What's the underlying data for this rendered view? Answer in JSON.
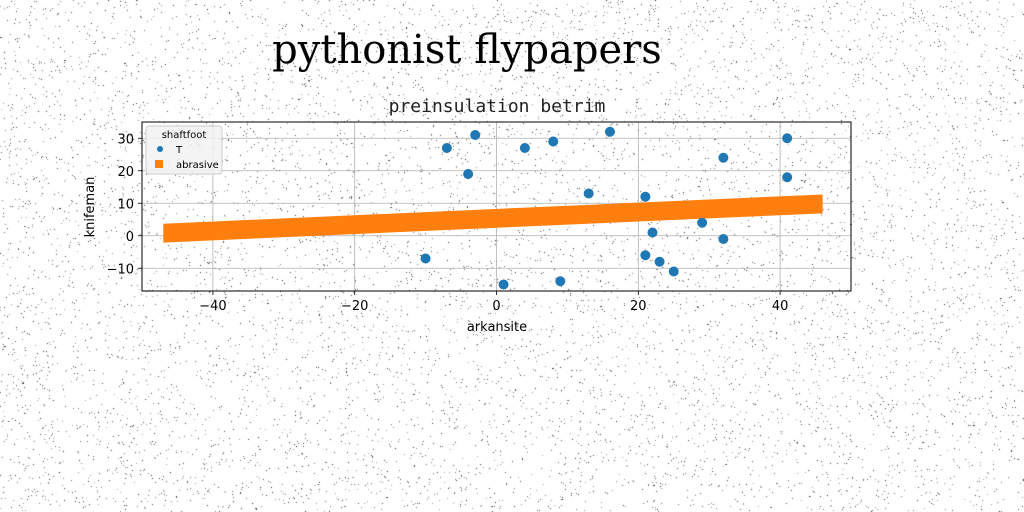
{
  "suptitle": "pythonist flypapers",
  "chart_data": {
    "type": "scatter",
    "title": "preinsulation betrim",
    "xlabel": "arkansite",
    "ylabel": "knifeman",
    "xlim": [
      -50,
      50
    ],
    "ylim": [
      -17,
      35
    ],
    "xticks": [
      -40,
      -20,
      0,
      20,
      40
    ],
    "yticks": [
      -10,
      0,
      10,
      20,
      30
    ],
    "grid": true,
    "legend": {
      "title": "shaftfoot",
      "placement": "top-left"
    },
    "series": [
      {
        "name": "T",
        "type": "scatter",
        "color": "#1f77b4",
        "points": [
          [
            -10,
            -7
          ],
          [
            -7,
            27
          ],
          [
            -4,
            19
          ],
          [
            -3,
            31
          ],
          [
            1,
            -15
          ],
          [
            4,
            27
          ],
          [
            8,
            29
          ],
          [
            9,
            -14
          ],
          [
            13,
            13
          ],
          [
            16,
            32
          ],
          [
            21,
            12
          ],
          [
            21,
            -6
          ],
          [
            22,
            1
          ],
          [
            23,
            -8
          ],
          [
            25,
            -11
          ],
          [
            29,
            4
          ],
          [
            32,
            24
          ],
          [
            32,
            -1
          ],
          [
            41,
            30
          ],
          [
            41,
            18
          ]
        ]
      },
      {
        "name": "abrasive",
        "type": "band",
        "color": "#ff7f0e",
        "x": [
          -47,
          46
        ],
        "y_center": [
          0.8,
          9.8
        ],
        "half_width": 2.9
      }
    ]
  }
}
